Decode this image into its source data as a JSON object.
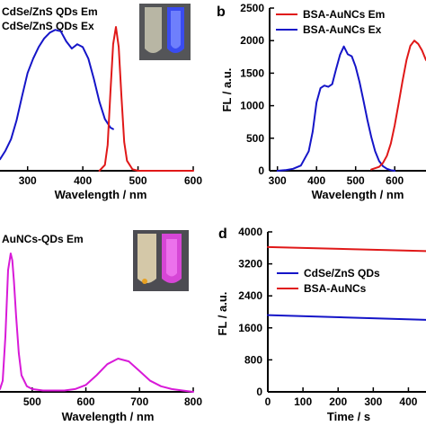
{
  "colors": {
    "blue": "#1515c8",
    "red": "#e01818",
    "magenta": "#d81ad8"
  },
  "panels": {
    "a": {
      "xlabel": "Wavelength / nm",
      "legend": [
        "CdSe/ZnS QDs Em",
        "CdSe/ZnS QDs Ex"
      ]
    },
    "b": {
      "letter": "b",
      "xlabel": "Wavelength / nm",
      "ylabel": "FL / a.u.",
      "legend": [
        "BSA-AuNCs Em",
        "BSA-AuNCs Ex"
      ]
    },
    "c": {
      "xlabel": "Wavelength / nm",
      "legend": [
        "AuNCs-QDs Em"
      ]
    },
    "d": {
      "letter": "d",
      "xlabel": "Time / s",
      "ylabel": "FL / a.u.",
      "legend": [
        "CdSe/ZnS QDs",
        "BSA-AuNCs"
      ]
    }
  },
  "chart_data": [
    {
      "id": "a",
      "type": "line",
      "xlim": [
        250,
        600
      ],
      "xticks": [
        "300",
        "400",
        "500",
        "600"
      ],
      "series": [
        {
          "name": "CdSe/ZnS QDs Ex",
          "color": "#1515c8",
          "x": [
            250,
            260,
            270,
            280,
            290,
            300,
            310,
            320,
            330,
            340,
            350,
            360,
            370,
            380,
            390,
            400,
            410,
            420,
            430,
            440,
            450,
            455
          ],
          "y": [
            0.08,
            0.14,
            0.22,
            0.35,
            0.52,
            0.68,
            0.78,
            0.86,
            0.92,
            0.96,
            0.98,
            0.97,
            0.9,
            0.85,
            0.88,
            0.86,
            0.78,
            0.64,
            0.48,
            0.36,
            0.3,
            0.29
          ]
        },
        {
          "name": "CdSe/ZnS QDs Em",
          "color": "#e01818",
          "x": [
            430,
            440,
            445,
            450,
            455,
            460,
            465,
            470,
            475,
            480,
            490,
            500,
            520,
            560,
            600
          ],
          "y": [
            0.0,
            0.04,
            0.18,
            0.55,
            0.88,
            1.0,
            0.86,
            0.52,
            0.2,
            0.07,
            0.01,
            0.0,
            0.0,
            0.0,
            0.0
          ]
        }
      ]
    },
    {
      "id": "b",
      "type": "line",
      "xlim": [
        280,
        680
      ],
      "ylim": [
        0,
        2500
      ],
      "xticks": [
        "300",
        "400",
        "500",
        "600"
      ],
      "yticks": [
        "0",
        "500",
        "1000",
        "1500",
        "2000",
        "2500"
      ],
      "series": [
        {
          "name": "BSA-AuNCs Ex",
          "color": "#1515c8",
          "x": [
            300,
            320,
            340,
            360,
            380,
            390,
            400,
            410,
            420,
            430,
            440,
            450,
            460,
            470,
            475,
            480,
            490,
            500,
            510,
            520,
            530,
            540,
            550,
            560,
            570,
            580,
            590,
            600
          ],
          "y": [
            0,
            10,
            30,
            80,
            300,
            600,
            1050,
            1270,
            1310,
            1290,
            1330,
            1560,
            1780,
            1910,
            1850,
            1790,
            1760,
            1600,
            1360,
            1080,
            780,
            520,
            300,
            150,
            70,
            30,
            10,
            0
          ]
        },
        {
          "name": "BSA-AuNCs Em",
          "color": "#e01818",
          "x": [
            540,
            560,
            570,
            580,
            590,
            600,
            610,
            620,
            630,
            640,
            650,
            660,
            670,
            680
          ],
          "y": [
            20,
            60,
            120,
            230,
            420,
            700,
            1030,
            1380,
            1700,
            1920,
            2000,
            1950,
            1850,
            1700
          ]
        }
      ]
    },
    {
      "id": "c",
      "type": "line",
      "xlim": [
        440,
        800
      ],
      "xticks": [
        "500",
        "600",
        "700",
        "800"
      ],
      "series": [
        {
          "name": "AuNCs-QDs Em",
          "color": "#d81ad8",
          "x": [
            440,
            445,
            450,
            455,
            460,
            463,
            466,
            470,
            475,
            480,
            490,
            500,
            520,
            540,
            560,
            580,
            600,
            620,
            640,
            660,
            680,
            700,
            720,
            740,
            760,
            780,
            800
          ],
          "y": [
            0.02,
            0.08,
            0.4,
            0.88,
            1.0,
            0.95,
            0.8,
            0.55,
            0.28,
            0.12,
            0.04,
            0.02,
            0.01,
            0.01,
            0.01,
            0.02,
            0.05,
            0.12,
            0.2,
            0.24,
            0.22,
            0.15,
            0.08,
            0.04,
            0.02,
            0.01,
            0.0
          ]
        }
      ]
    },
    {
      "id": "d",
      "type": "line",
      "xlim": [
        0,
        450
      ],
      "ylim": [
        0,
        4000
      ],
      "xticks": [
        "0",
        "100",
        "200",
        "300",
        "400"
      ],
      "yticks": [
        "0",
        "800",
        "1600",
        "2400",
        "3200",
        "4000"
      ],
      "series": [
        {
          "name": "CdSe/ZnS QDs",
          "color": "#1515c8",
          "x": [
            0,
            450
          ],
          "y": [
            1920,
            1800
          ]
        },
        {
          "name": "BSA-AuNCs",
          "color": "#e01818",
          "x": [
            0,
            450
          ],
          "y": [
            3620,
            3520
          ]
        }
      ]
    }
  ]
}
